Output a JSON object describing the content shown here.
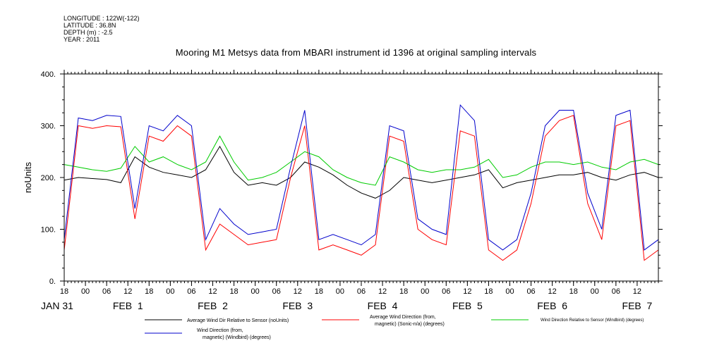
{
  "meta": {
    "longitude": "LONGITUDE : 122W(-122)",
    "latitude": "LATITUDE : 36.8N",
    "depth": "DEPTH (m) : -2.5",
    "year": "YEAR : 2011"
  },
  "chart_data": {
    "type": "line",
    "title": "Mooring M1 Metsys data from MBARI instrument id 1396 at original sampling intervals",
    "ylabel": "noUnits",
    "xlabel": "",
    "ylim": [
      0,
      400
    ],
    "yticks": [
      0,
      100,
      200,
      300,
      400
    ],
    "ytick_labels": [
      "0.",
      "100.",
      "200.",
      "300.",
      "400."
    ],
    "xlim_hours": [
      0,
      168
    ],
    "hour_ticks": [
      "18",
      "00",
      "06",
      "12",
      "18",
      "00",
      "06",
      "12",
      "18",
      "00",
      "06",
      "12",
      "18",
      "00",
      "06",
      "12",
      "18",
      "00",
      "06",
      "12",
      "18",
      "00",
      "06",
      "12",
      "18",
      "00",
      "06",
      "12"
    ],
    "day_labels": [
      {
        "label": "JAN 31",
        "hour": -2
      },
      {
        "label": "FEB  1",
        "hour": 18
      },
      {
        "label": "FEB  2",
        "hour": 42
      },
      {
        "label": "FEB  3",
        "hour": 66
      },
      {
        "label": "FEB  4",
        "hour": 90
      },
      {
        "label": "FEB  5",
        "hour": 114
      },
      {
        "label": "FEB  6",
        "hour": 138
      },
      {
        "label": "FEB  7",
        "hour": 162
      }
    ],
    "grid": false,
    "series": [
      {
        "name": "Average Wind Dir Relative to Sensor (noUnits)",
        "color": "#000000",
        "x": [
          0,
          4,
          8,
          12,
          16,
          20,
          24,
          28,
          32,
          36,
          40,
          44,
          48,
          52,
          56,
          60,
          64,
          68,
          72,
          76,
          80,
          84,
          88,
          92,
          96,
          100,
          104,
          108,
          112,
          116,
          120,
          124,
          128,
          132,
          136,
          140,
          144,
          148,
          152,
          156,
          160,
          164,
          168
        ],
        "y": [
          195,
          200,
          198,
          196,
          190,
          240,
          220,
          210,
          205,
          200,
          215,
          260,
          210,
          185,
          190,
          185,
          200,
          230,
          220,
          205,
          185,
          170,
          160,
          175,
          200,
          195,
          190,
          195,
          200,
          205,
          215,
          180,
          190,
          195,
          200,
          205,
          205,
          210,
          200,
          195,
          205,
          210,
          200
        ]
      },
      {
        "name": "Average Wind Direction (from, magnetic) (Sonic-n/a) (degrees)",
        "color": "#ff0000",
        "x": [
          0,
          4,
          8,
          12,
          16,
          20,
          24,
          28,
          32,
          36,
          40,
          44,
          48,
          52,
          56,
          60,
          64,
          68,
          72,
          76,
          80,
          84,
          88,
          92,
          96,
          100,
          104,
          108,
          112,
          116,
          120,
          124,
          128,
          132,
          136,
          140,
          144,
          148,
          152,
          156,
          160,
          164,
          168
        ],
        "y": [
          60,
          300,
          295,
          300,
          298,
          120,
          280,
          270,
          300,
          280,
          60,
          110,
          90,
          70,
          75,
          80,
          200,
          300,
          60,
          70,
          60,
          50,
          70,
          280,
          270,
          100,
          80,
          70,
          290,
          280,
          60,
          40,
          60,
          150,
          280,
          310,
          320,
          150,
          80,
          300,
          310,
          40,
          60
        ]
      },
      {
        "name": "Wind Direction Relative to Sensor (Windbird) (degrees)",
        "color": "#00cc00",
        "x": [
          0,
          4,
          8,
          12,
          16,
          20,
          24,
          28,
          32,
          36,
          40,
          44,
          48,
          52,
          56,
          60,
          64,
          68,
          72,
          76,
          80,
          84,
          88,
          92,
          96,
          100,
          104,
          108,
          112,
          116,
          120,
          124,
          128,
          132,
          136,
          140,
          144,
          148,
          152,
          156,
          160,
          164,
          168
        ],
        "y": [
          225,
          220,
          215,
          212,
          218,
          260,
          230,
          240,
          225,
          215,
          230,
          280,
          230,
          195,
          200,
          210,
          230,
          250,
          240,
          215,
          200,
          190,
          185,
          240,
          230,
          215,
          210,
          215,
          215,
          220,
          235,
          200,
          205,
          220,
          230,
          230,
          225,
          230,
          220,
          215,
          230,
          235,
          225
        ]
      },
      {
        "name": "Wind Direction (from, magnetic) (Windbird) (degrees)",
        "color": "#0000cc",
        "x": [
          0,
          4,
          8,
          12,
          16,
          20,
          24,
          28,
          32,
          36,
          40,
          44,
          48,
          52,
          56,
          60,
          64,
          68,
          72,
          76,
          80,
          84,
          88,
          92,
          96,
          100,
          104,
          108,
          112,
          116,
          120,
          124,
          128,
          132,
          136,
          140,
          144,
          148,
          152,
          156,
          160,
          164,
          168
        ],
        "y": [
          80,
          315,
          310,
          320,
          318,
          140,
          300,
          290,
          320,
          300,
          80,
          140,
          110,
          90,
          95,
          100,
          220,
          330,
          80,
          90,
          80,
          70,
          90,
          300,
          290,
          120,
          100,
          90,
          340,
          310,
          80,
          60,
          80,
          170,
          300,
          330,
          330,
          170,
          100,
          320,
          330,
          60,
          80
        ]
      }
    ]
  },
  "legend": {
    "black": "Average Wind Dir Relative to Sensor (noUnits)",
    "red_line1": "Average Wind Direction (from,",
    "red_line2": "magnetic) (Sonic-n/a) (degrees)",
    "green": "Wind Direction Relative to Sensor (Windbird) (degrees)",
    "blue_line1": "Wind Direction (from,",
    "blue_line2": "magnetic) (Windbird) (degrees)"
  }
}
